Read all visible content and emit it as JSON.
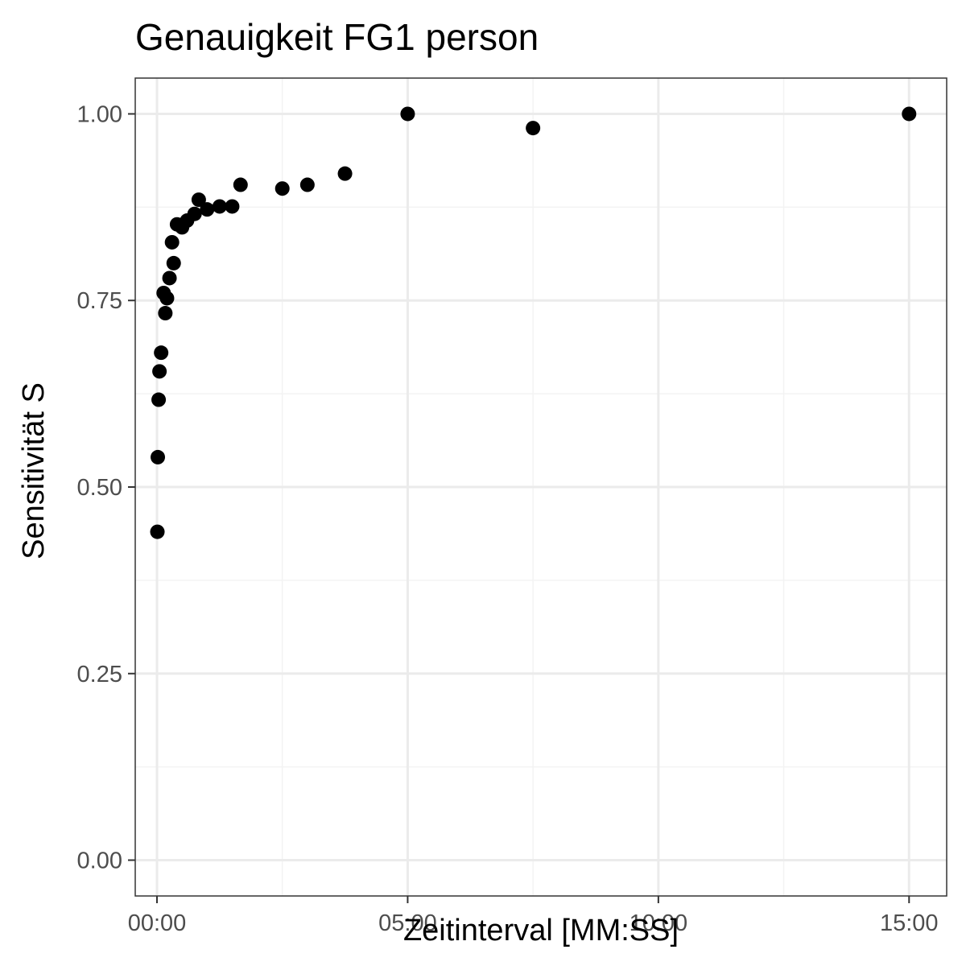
{
  "chart_data": {
    "type": "scatter",
    "title": "Genauigkeit FG1 person",
    "xlabel": "Zeitinterval [MM:SS]",
    "ylabel": "Sensitivität S",
    "x_unit": "seconds",
    "xlim": [
      -26,
      945
    ],
    "ylim": [
      -0.048,
      1.048
    ],
    "x_ticks": [
      {
        "value": 0,
        "label": "00:00"
      },
      {
        "value": 300,
        "label": "05:00"
      },
      {
        "value": 600,
        "label": "10:00"
      },
      {
        "value": 900,
        "label": "15:00"
      }
    ],
    "y_ticks": [
      {
        "value": 0.0,
        "label": "0.00"
      },
      {
        "value": 0.25,
        "label": "0.25"
      },
      {
        "value": 0.5,
        "label": "0.50"
      },
      {
        "value": 0.75,
        "label": "0.75"
      },
      {
        "value": 1.0,
        "label": "1.00"
      }
    ],
    "grid": true,
    "legend": "none",
    "point_color": "#000000",
    "points": [
      {
        "x": 0.5,
        "y": 0.44
      },
      {
        "x": 1,
        "y": 0.54
      },
      {
        "x": 2,
        "y": 0.617
      },
      {
        "x": 3,
        "y": 0.655
      },
      {
        "x": 5,
        "y": 0.68
      },
      {
        "x": 8,
        "y": 0.76
      },
      {
        "x": 10,
        "y": 0.733
      },
      {
        "x": 12,
        "y": 0.753
      },
      {
        "x": 15,
        "y": 0.78
      },
      {
        "x": 18,
        "y": 0.828
      },
      {
        "x": 20,
        "y": 0.8
      },
      {
        "x": 24,
        "y": 0.852
      },
      {
        "x": 30,
        "y": 0.848
      },
      {
        "x": 36,
        "y": 0.857
      },
      {
        "x": 45,
        "y": 0.866
      },
      {
        "x": 50,
        "y": 0.885
      },
      {
        "x": 60,
        "y": 0.872
      },
      {
        "x": 75,
        "y": 0.876
      },
      {
        "x": 90,
        "y": 0.876
      },
      {
        "x": 100,
        "y": 0.905
      },
      {
        "x": 150,
        "y": 0.9
      },
      {
        "x": 180,
        "y": 0.905
      },
      {
        "x": 225,
        "y": 0.92
      },
      {
        "x": 300,
        "y": 1.0
      },
      {
        "x": 450,
        "y": 0.981
      },
      {
        "x": 900,
        "y": 1.0
      }
    ]
  },
  "colors": {
    "panel_border": "#333333",
    "grid_major": "#ebebeb",
    "grid_minor": "#f3f3f3",
    "tick_mark": "#333333",
    "tick_text": "#4d4d4d"
  }
}
